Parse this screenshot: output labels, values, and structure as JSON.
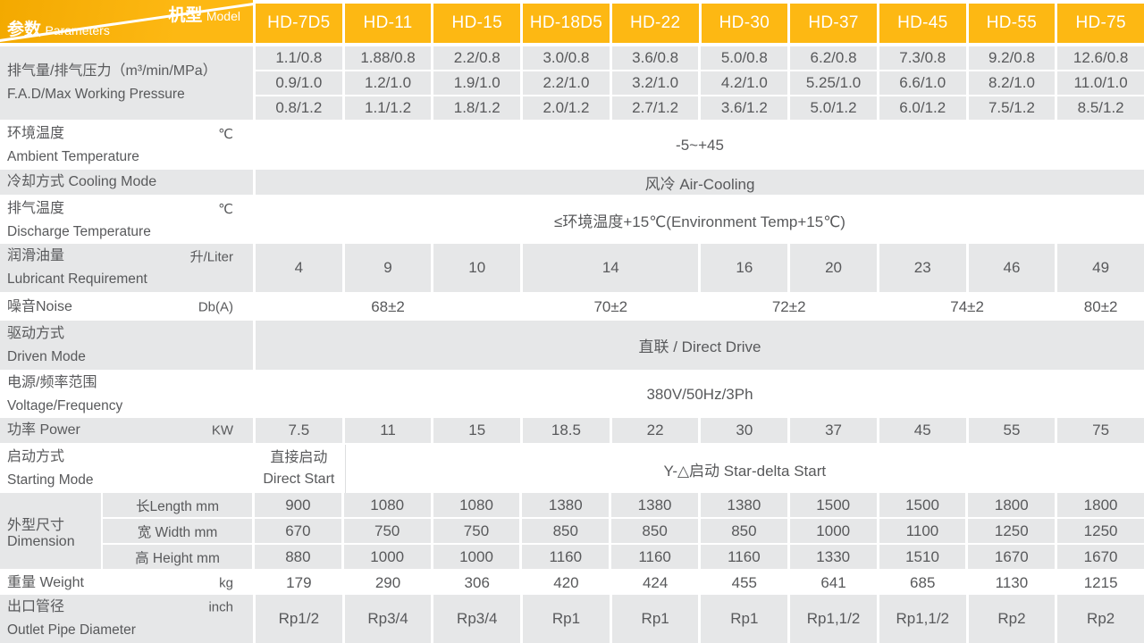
{
  "colors": {
    "header_yellow": "#FDB813",
    "header_yellow_deep": "#F3A900",
    "row_gray": "#E6E7E8",
    "text_gray": "#58595B",
    "separator_line": "#DDDEE0"
  },
  "corner": {
    "model_zh": "机型",
    "model_en": "Model",
    "params_zh": "参数",
    "params_en": "Parameters"
  },
  "models": [
    "HD-7D5",
    "HD-11",
    "HD-15",
    "HD-18D5",
    "HD-22",
    "HD-30",
    "HD-37",
    "HD-45",
    "HD-55",
    "HD-75"
  ],
  "table": {
    "rows": [
      {
        "id": "fad",
        "kind": "multirow",
        "shade": "gray",
        "label_lines": [
          "排气量/排气压力（m³/min/MPa）",
          "F.A.D/Max Working Pressure"
        ],
        "subrows": [
          [
            "1.1/0.8",
            "1.88/0.8",
            "2.2/0.8",
            "3.0/0.8",
            "3.6/0.8",
            "5.0/0.8",
            "6.2/0.8",
            "7.3/0.8",
            "9.2/0.8",
            "12.6/0.8"
          ],
          [
            "0.9/1.0",
            "1.2/1.0",
            "1.9/1.0",
            "2.2/1.0",
            "3.2/1.0",
            "4.2/1.0",
            "5.25/1.0",
            "6.6/1.0",
            "8.2/1.0",
            "11.0/1.0"
          ],
          [
            "0.8/1.2",
            "1.1/1.2",
            "1.8/1.2",
            "2.0/1.2",
            "2.7/1.2",
            "3.6/1.2",
            "5.0/1.2",
            "6.0/1.2",
            "7.5/1.2",
            "8.5/1.2"
          ]
        ]
      },
      {
        "id": "ambient",
        "kind": "span",
        "shade": "white",
        "label_lines": [
          "环境温度",
          "Ambient Temperature"
        ],
        "unit": "℃",
        "unit_align": "top",
        "value": "-5~+45"
      },
      {
        "id": "cooling",
        "kind": "span",
        "shade": "gray",
        "label_lines": [
          "冷却方式 Cooling Mode"
        ],
        "value": "风冷 Air-Cooling"
      },
      {
        "id": "discharge",
        "kind": "span",
        "shade": "white",
        "label_lines": [
          "排气温度",
          "Discharge Temperature"
        ],
        "unit": "℃",
        "unit_align": "top",
        "value": "≤环境温度+15℃(Environment Temp+15℃)"
      },
      {
        "id": "lubricant",
        "kind": "cells",
        "shade": "gray",
        "label_lines": [
          "润滑油量",
          "Lubricant Requirement"
        ],
        "unit": "升/Liter",
        "unit_align": "top",
        "cells": [
          {
            "text": "4",
            "span": 1
          },
          {
            "text": "9",
            "span": 1
          },
          {
            "text": "10",
            "span": 1
          },
          {
            "text": "14",
            "span": 2
          },
          {
            "text": "16",
            "span": 1
          },
          {
            "text": "20",
            "span": 1
          },
          {
            "text": "23",
            "span": 1
          },
          {
            "text": "46",
            "span": 1
          },
          {
            "text": "49",
            "span": 1
          }
        ]
      },
      {
        "id": "noise",
        "kind": "cells",
        "shade": "white",
        "label_lines": [
          "噪音Noise"
        ],
        "unit": "Db(A)",
        "unit_align": "mid",
        "cells": [
          {
            "text": "68±2",
            "span": 3
          },
          {
            "text": "70±2",
            "span": 2
          },
          {
            "text": "72±2",
            "span": 2
          },
          {
            "text": "74±2",
            "span": 2
          },
          {
            "text": "80±2",
            "span": 1
          }
        ]
      },
      {
        "id": "driven",
        "kind": "span",
        "shade": "gray",
        "label_lines": [
          "驱动方式",
          "Driven Mode"
        ],
        "value": "直联 / Direct Drive"
      },
      {
        "id": "voltage",
        "kind": "span",
        "shade": "white",
        "label_lines": [
          "电源/频率范围",
          "Voltage/Frequency"
        ],
        "value": "380V/50Hz/3Ph"
      },
      {
        "id": "power",
        "kind": "cells",
        "shade": "gray",
        "label_lines": [
          "功率 Power"
        ],
        "unit": "KW",
        "unit_align": "mid",
        "cells": [
          {
            "text": "7.5",
            "span": 1
          },
          {
            "text": "11",
            "span": 1
          },
          {
            "text": "15",
            "span": 1
          },
          {
            "text": "18.5",
            "span": 1
          },
          {
            "text": "22",
            "span": 1
          },
          {
            "text": "30",
            "span": 1
          },
          {
            "text": "37",
            "span": 1
          },
          {
            "text": "45",
            "span": 1
          },
          {
            "text": "55",
            "span": 1
          },
          {
            "text": "75",
            "span": 1
          }
        ]
      },
      {
        "id": "starting",
        "kind": "cells",
        "shade": "white",
        "label_lines": [
          "启动方式",
          "Starting Mode"
        ],
        "cells": [
          {
            "lines": [
              "直接启动",
              "Direct Start"
            ],
            "span": 1
          },
          {
            "text": "Y-△启动 Star-delta Start",
            "span": 9,
            "sep": true
          }
        ]
      },
      {
        "id": "dimension",
        "kind": "dim",
        "shade": "gray",
        "label_lines": [
          "外型尺寸",
          "Dimension"
        ],
        "subs": [
          {
            "label": "长Length mm",
            "values": [
              "900",
              "1080",
              "1080",
              "1380",
              "1380",
              "1380",
              "1500",
              "1500",
              "1800",
              "1800"
            ]
          },
          {
            "label": "宽 Width mm",
            "values": [
              "670",
              "750",
              "750",
              "850",
              "850",
              "850",
              "1000",
              "1100",
              "1250",
              "1250"
            ]
          },
          {
            "label": "高 Height mm",
            "values": [
              "880",
              "1000",
              "1000",
              "1160",
              "1160",
              "1160",
              "1330",
              "1510",
              "1670",
              "1670"
            ]
          }
        ]
      },
      {
        "id": "weight",
        "kind": "cells",
        "shade": "white",
        "label_lines": [
          "重量 Weight"
        ],
        "unit": "kg",
        "unit_align": "mid",
        "cells": [
          {
            "text": "179",
            "span": 1
          },
          {
            "text": "290",
            "span": 1
          },
          {
            "text": "306",
            "span": 1
          },
          {
            "text": "420",
            "span": 1
          },
          {
            "text": "424",
            "span": 1
          },
          {
            "text": "455",
            "span": 1
          },
          {
            "text": "641",
            "span": 1
          },
          {
            "text": "685",
            "span": 1
          },
          {
            "text": "1130",
            "span": 1
          },
          {
            "text": "1215",
            "span": 1
          }
        ]
      },
      {
        "id": "outlet",
        "kind": "cells",
        "shade": "gray",
        "label_lines": [
          "出口管径",
          "Outlet Pipe Diameter"
        ],
        "unit": "inch",
        "unit_align": "top",
        "cells": [
          {
            "text": "Rp1/2",
            "span": 1
          },
          {
            "text": "Rp3/4",
            "span": 1
          },
          {
            "text": "Rp3/4",
            "span": 1
          },
          {
            "text": "Rp1",
            "span": 1
          },
          {
            "text": "Rp1",
            "span": 1
          },
          {
            "text": "Rp1",
            "span": 1
          },
          {
            "text": "Rp1,1/2",
            "span": 1
          },
          {
            "text": "Rp1,1/2",
            "span": 1
          },
          {
            "text": "Rp2",
            "span": 1
          },
          {
            "text": "Rp2",
            "span": 1
          }
        ]
      }
    ]
  }
}
